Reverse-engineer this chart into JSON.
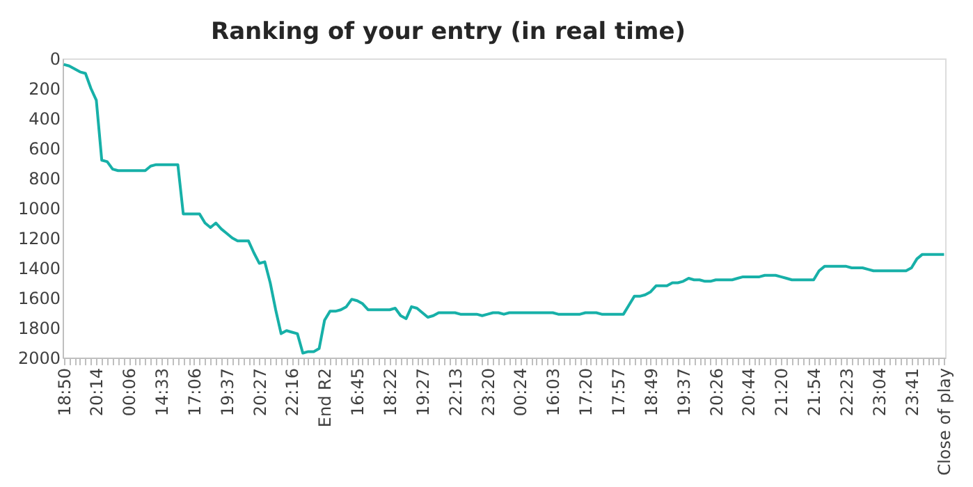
{
  "chart_data": {
    "type": "line",
    "title": "Ranking of your entry (in real time)",
    "categories": [
      "18:50",
      null,
      null,
      null,
      null,
      null,
      "20:14",
      null,
      null,
      null,
      null,
      null,
      "00:06",
      null,
      null,
      null,
      null,
      null,
      "14:33",
      null,
      null,
      null,
      null,
      null,
      "17:06",
      null,
      null,
      null,
      null,
      null,
      "19:37",
      null,
      null,
      null,
      null,
      null,
      "20:27",
      null,
      null,
      null,
      null,
      null,
      "22:16",
      null,
      null,
      null,
      null,
      null,
      "End R2",
      null,
      null,
      null,
      null,
      null,
      "16:45",
      null,
      null,
      null,
      null,
      null,
      "18:22",
      null,
      null,
      null,
      null,
      null,
      "19:27",
      null,
      null,
      null,
      null,
      null,
      "22:13",
      null,
      null,
      null,
      null,
      null,
      "23:20",
      null,
      null,
      null,
      null,
      null,
      "00:24",
      null,
      null,
      null,
      null,
      null,
      "16:03",
      null,
      null,
      null,
      null,
      null,
      "17:20",
      null,
      null,
      null,
      null,
      null,
      "17:57",
      null,
      null,
      null,
      null,
      null,
      "18:49",
      null,
      null,
      null,
      null,
      null,
      "19:37",
      null,
      null,
      null,
      null,
      null,
      "20:26",
      null,
      null,
      null,
      null,
      null,
      "20:44",
      null,
      null,
      null,
      null,
      null,
      "21:20",
      null,
      null,
      null,
      null,
      null,
      "21:54",
      null,
      null,
      null,
      null,
      null,
      "22:23",
      null,
      null,
      null,
      null,
      null,
      "23:04",
      null,
      null,
      null,
      null,
      null,
      "23:41",
      null,
      null,
      null,
      null,
      null,
      "Close of play"
    ],
    "series": [
      {
        "color": "#17b0a8",
        "values": [
          40,
          50,
          70,
          90,
          100,
          200,
          280,
          680,
          690,
          740,
          750,
          750,
          750,
          750,
          750,
          750,
          720,
          710,
          710,
          710,
          710,
          710,
          1040,
          1040,
          1040,
          1040,
          1100,
          1130,
          1100,
          1140,
          1170,
          1200,
          1220,
          1220,
          1220,
          1300,
          1370,
          1360,
          1500,
          1680,
          1840,
          1820,
          1830,
          1840,
          1970,
          1960,
          1960,
          1940,
          1750,
          1690,
          1690,
          1680,
          1660,
          1610,
          1620,
          1640,
          1680,
          1680,
          1680,
          1680,
          1680,
          1670,
          1720,
          1740,
          1660,
          1670,
          1700,
          1730,
          1720,
          1700,
          1700,
          1700,
          1700,
          1710,
          1710,
          1710,
          1710,
          1720,
          1710,
          1700,
          1700,
          1710,
          1700,
          1700,
          1700,
          1700,
          1700,
          1700,
          1700,
          1700,
          1700,
          1710,
          1710,
          1710,
          1710,
          1710,
          1700,
          1700,
          1700,
          1710,
          1710,
          1710,
          1710,
          1710,
          1650,
          1590,
          1590,
          1580,
          1560,
          1520,
          1520,
          1520,
          1500,
          1500,
          1490,
          1470,
          1480,
          1480,
          1490,
          1490,
          1480,
          1480,
          1480,
          1480,
          1470,
          1460,
          1460,
          1460,
          1460,
          1450,
          1450,
          1450,
          1460,
          1470,
          1480,
          1480,
          1480,
          1480,
          1480,
          1420,
          1390,
          1390,
          1390,
          1390,
          1390,
          1400,
          1400,
          1400,
          1410,
          1420,
          1420,
          1420,
          1420,
          1420,
          1420,
          1420,
          1400,
          1340,
          1310,
          1310,
          1310,
          1310,
          1310
        ]
      }
    ],
    "ylim": [
      2000,
      0
    ],
    "yticks": [
      0,
      200,
      400,
      600,
      800,
      1000,
      1200,
      1400,
      1600,
      1800,
      2000
    ],
    "grid": false,
    "legend": false,
    "marker": "none",
    "line_style": "solid"
  }
}
